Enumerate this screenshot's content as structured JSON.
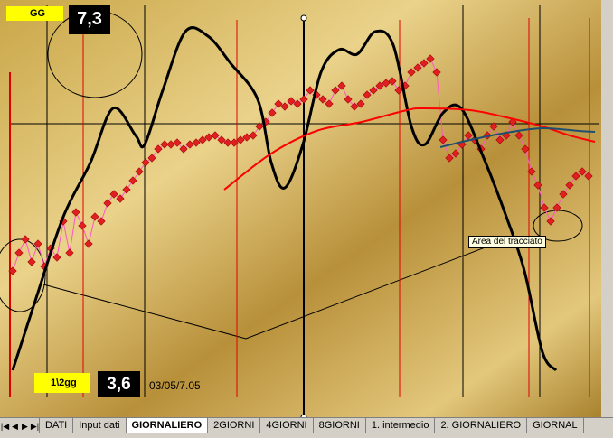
{
  "cells": {
    "gg_label": "GG",
    "gg_value": "7,3",
    "half_label": "1\\2gg",
    "half_value": "3,6",
    "date": "03/05/7.05"
  },
  "tooltip": "Area del tracciato",
  "sheet_tabs": [
    "DATI",
    "Input dati",
    "GIORNALIERO",
    "2GIORNI",
    "4GIORNI",
    "8GIORNI",
    "1. intermedio",
    "2. GIORNALIERO",
    "GIORNAL"
  ],
  "chart_data": {
    "type": "line",
    "xlim": [
      10,
      662
    ],
    "ylim": [
      0,
      435
    ],
    "series": [
      {
        "color": "#e02020",
        "line_color": "#ff55c8",
        "marker": "diamond",
        "x": [
          14,
          21,
          28,
          35,
          42,
          49,
          56,
          63,
          70,
          77,
          84,
          91,
          98,
          105,
          112,
          119,
          126,
          133,
          140,
          147,
          154,
          161,
          168,
          175,
          182,
          189,
          196,
          203,
          210,
          217,
          224,
          231,
          238,
          245,
          252,
          259,
          266,
          273,
          280,
          287,
          294,
          301,
          308,
          315,
          322,
          329,
          336,
          343,
          350,
          357,
          364,
          371,
          378,
          385,
          392,
          399,
          406,
          413,
          420,
          427,
          434,
          441,
          448,
          455,
          462,
          469,
          476,
          483,
          490,
          497,
          504,
          511,
          518,
          525,
          532,
          539,
          546,
          553,
          560,
          567,
          574,
          581,
          588,
          595,
          602,
          609,
          616,
          623,
          630,
          637,
          644,
          651
        ],
        "values": [
          140,
          160,
          175,
          150,
          170,
          145,
          165,
          155,
          195,
          160,
          205,
          190,
          170,
          200,
          195,
          215,
          225,
          220,
          230,
          240,
          250,
          260,
          265,
          275,
          280,
          280,
          282,
          275,
          280,
          282,
          285,
          288,
          290,
          285,
          282,
          282,
          285,
          288,
          290,
          300,
          305,
          315,
          325,
          322,
          328,
          325,
          330,
          340,
          335,
          330,
          325,
          340,
          345,
          330,
          322,
          325,
          335,
          340,
          345,
          348,
          350,
          340,
          345,
          360,
          365,
          370,
          375,
          360,
          285,
          265,
          270,
          280,
          290,
          285,
          275,
          290,
          300,
          285,
          290,
          305,
          290,
          275,
          250,
          235,
          210,
          195,
          210,
          225,
          235,
          245,
          250,
          245
        ]
      },
      {
        "color": "#000000",
        "smooth": true,
        "x": [
          14,
          40,
          70,
          100,
          125,
          150,
          160,
          180,
          205,
          230,
          255,
          285,
          300,
          315,
          335,
          355,
          375,
          395,
          415,
          435,
          455,
          470,
          490,
          510,
          535,
          560,
          580,
          600,
          615
        ],
        "values": [
          30,
          110,
          200,
          260,
          320,
          290,
          280,
          340,
          405,
          400,
          370,
          330,
          260,
          232,
          280,
          360,
          385,
          380,
          405,
          390,
          300,
          280,
          315,
          320,
          265,
          200,
          140,
          50,
          30
        ]
      },
      {
        "color": "#ff0000",
        "smooth": true,
        "x": [
          248,
          300,
          350,
          400,
          450,
          470,
          520,
          560,
          600,
          630,
          658
        ],
        "values": [
          230,
          270,
          295,
          305,
          318,
          320,
          318,
          310,
          300,
          290,
          283
        ]
      },
      {
        "color": "#1f4f6f",
        "smooth": true,
        "x": [
          487,
          520,
          560,
          600,
          640,
          658
        ],
        "values": [
          277,
          285,
          293,
          298,
          295,
          294
        ]
      }
    ]
  }
}
